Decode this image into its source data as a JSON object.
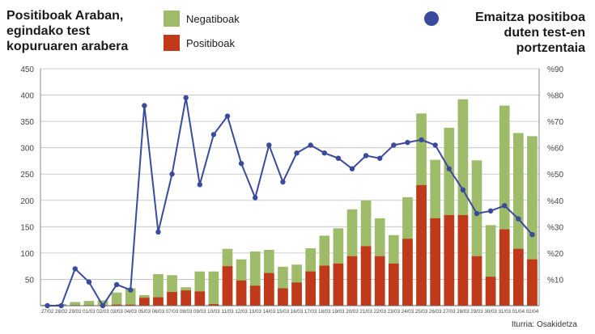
{
  "header": {
    "title_lines": [
      "Positiboak Araban,",
      "egindako test",
      "kopuruaren arabera"
    ],
    "right_title_lines": [
      "Emaitza positiboa",
      "duten test-en",
      "portzentaia"
    ]
  },
  "legend": {
    "negative_label": "Negatiboak",
    "positive_label": "Positiboak"
  },
  "colors": {
    "negative": "#9dbb68",
    "positive": "#c0391b",
    "line": "#3a4a9c",
    "grid": "#bdbdbd",
    "axis_text": "#444444"
  },
  "source": "Iturria: Osakidetza",
  "chart_data": {
    "type": "bar",
    "categories": [
      "27/02",
      "28/02",
      "29/02",
      "01/03",
      "02/03",
      "03/03",
      "04/03",
      "05/03",
      "06/03",
      "07/03",
      "08/03",
      "09/03",
      "10/03",
      "11/03",
      "12/03",
      "13/03",
      "14/03",
      "15/03",
      "16/03",
      "17/03",
      "18/03",
      "19/03",
      "20/03",
      "21/03",
      "22/03",
      "23/03",
      "24/03",
      "25/03",
      "26/03",
      "27/03",
      "28/03",
      "29/03",
      "30/03",
      "31/03",
      "01/04",
      "02/04"
    ],
    "series": [
      {
        "name": "Positiboak",
        "values": [
          0,
          0,
          1,
          1,
          0,
          2,
          2,
          15,
          16,
          26,
          29,
          27,
          3,
          75,
          48,
          38,
          62,
          33,
          44,
          65,
          76,
          80,
          94,
          113,
          94,
          80,
          127,
          229,
          166,
          172,
          172,
          94,
          55,
          145,
          108,
          88
        ]
      },
      {
        "name": "Negatiboak",
        "values": [
          2,
          3,
          7,
          9,
          10,
          25,
          33,
          20,
          60,
          58,
          35,
          65,
          65,
          108,
          88,
          103,
          106,
          74,
          78,
          109,
          133,
          147,
          183,
          200,
          166,
          134,
          206,
          365,
          277,
          338,
          392,
          276,
          153,
          380,
          328,
          322
        ]
      }
    ],
    "line": {
      "name": "Emaitza positiboa duten test-en portzentaia",
      "values": [
        0,
        0,
        14,
        9,
        0,
        8,
        6,
        76,
        28,
        50,
        79,
        46,
        65,
        72,
        54,
        41,
        61,
        47,
        58,
        61,
        58,
        56,
        52,
        57,
        56,
        61,
        62,
        63,
        61,
        52,
        44,
        35,
        36,
        38,
        33,
        27
      ]
    },
    "yaxis_left": {
      "ticks": [
        50,
        100,
        150,
        200,
        250,
        300,
        350,
        400,
        450
      ],
      "ylim": [
        0,
        450
      ]
    },
    "yaxis_right": {
      "ticks": [
        "%10",
        "%20",
        "%30",
        "%40",
        "%50",
        "%60",
        "%70",
        "%80",
        "%90"
      ],
      "ylim": [
        0,
        90
      ]
    },
    "grid": true
  }
}
